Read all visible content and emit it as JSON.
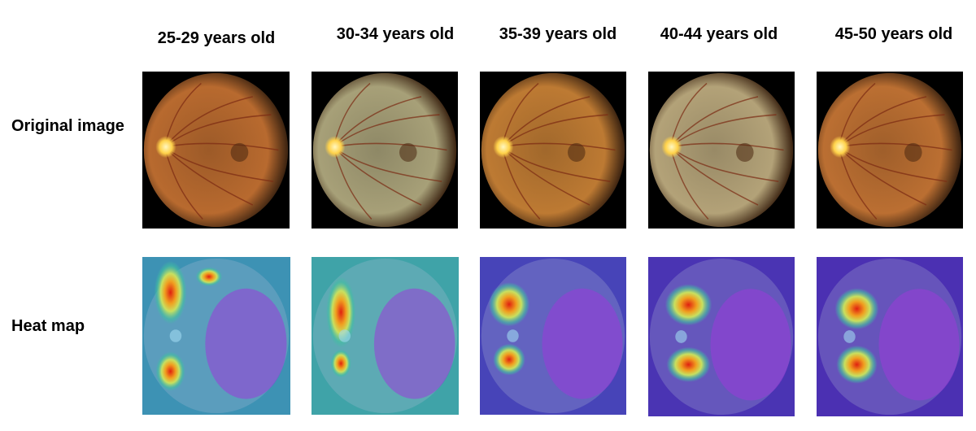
{
  "columns": [
    {
      "label": "25-29 years old"
    },
    {
      "label": "30-34 years old"
    },
    {
      "label": "35-39 years old"
    },
    {
      "label": "40-44 years old"
    },
    {
      "label": "45-50 years old"
    }
  ],
  "rows": [
    {
      "label": "Original image"
    },
    {
      "label": "Heat map"
    }
  ],
  "fundus_tints": [
    "#b86a2f",
    "#a7a078",
    "#bd7a33",
    "#b3a278",
    "#bb6f32"
  ],
  "heatmap_background": [
    "#3d92b4",
    "#3fa3a8",
    "#4744b8",
    "#4a34b3",
    "#4b30b2"
  ]
}
